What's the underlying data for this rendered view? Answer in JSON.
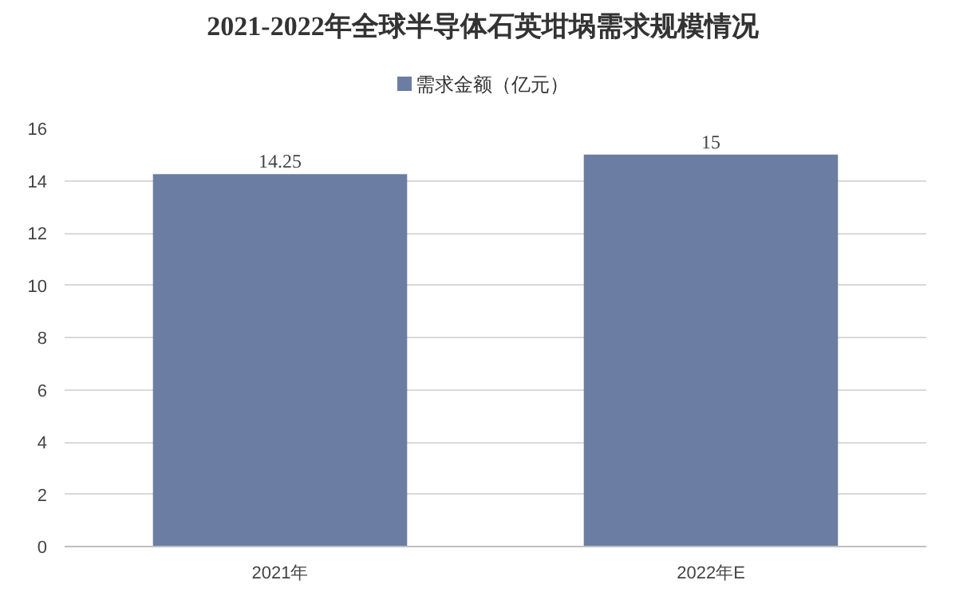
{
  "chart_data": {
    "type": "bar",
    "title": "2021-2022年全球半导体石英坩埚需求规模情况",
    "categories": [
      "2021年",
      "2022年E"
    ],
    "series": [
      {
        "name": "需求金额（亿元）",
        "color": "#6b7da3",
        "values": [
          14.25,
          15
        ]
      }
    ],
    "value_labels": [
      "14.25",
      "15"
    ],
    "ylim": [
      0,
      16
    ],
    "yticks": [
      0,
      2,
      4,
      6,
      8,
      10,
      12,
      14,
      16
    ],
    "grid": "y",
    "legend": "top"
  }
}
